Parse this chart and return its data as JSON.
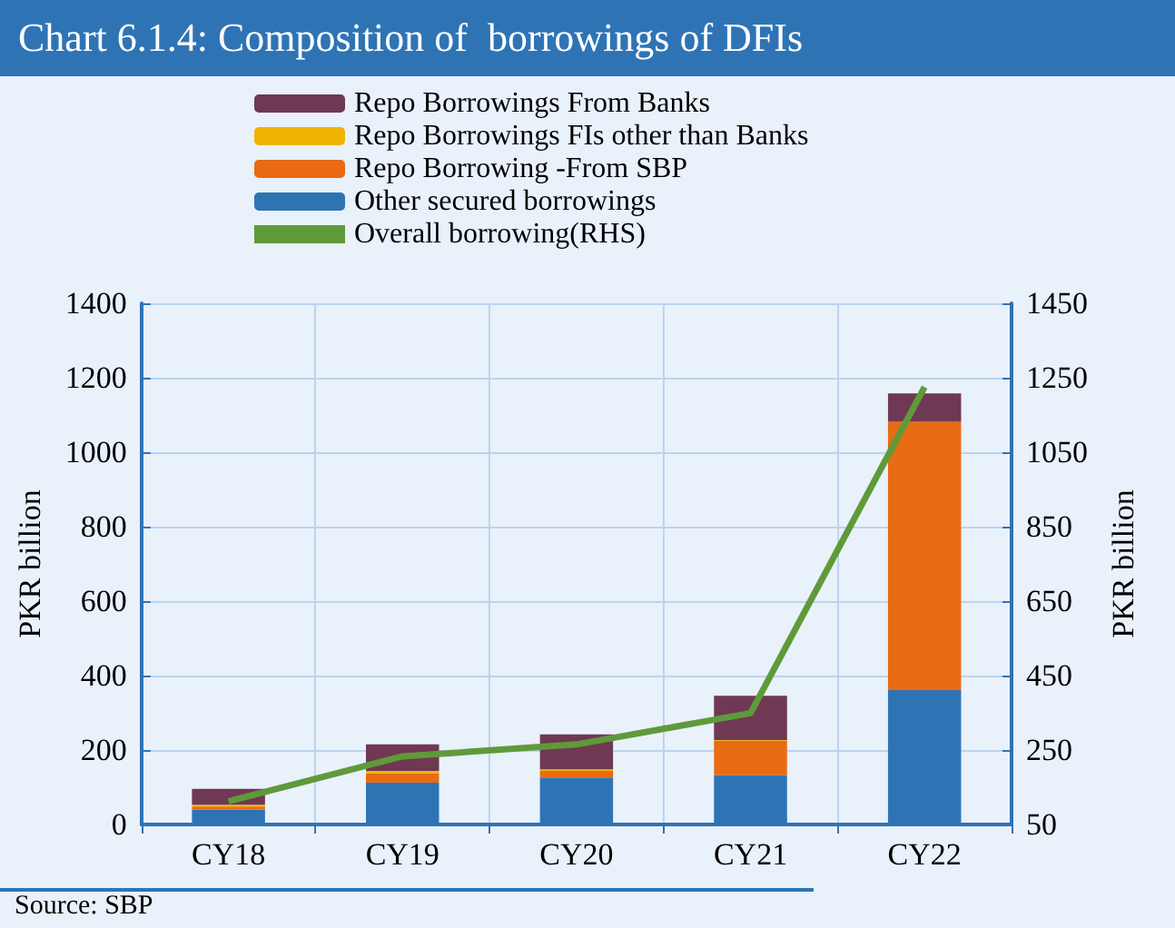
{
  "chart_data": {
    "type": "bar",
    "title": "Chart 6.1.4: Composition of  borrowings of DFIs",
    "ylabel": "PKR billion",
    "y2label": "PKR billion",
    "annotations": [
      "Source: SBP"
    ],
    "categories": [
      "CY18",
      "CY19",
      "CY20",
      "CY21",
      "CY22"
    ],
    "stacked": true,
    "series": [
      {
        "name": "Other secured borrowings",
        "color": "#2e74b5",
        "values": [
          40,
          112,
          126,
          133,
          361
        ]
      },
      {
        "name": "Repo Borrowing -From SBP",
        "color": "#e96b14",
        "values": [
          8,
          26,
          18,
          92,
          721
        ]
      },
      {
        "name": "Repo Borrowings FIs other than Banks",
        "color": "#f0b400",
        "values": [
          5,
          6,
          4,
          2,
          0
        ]
      },
      {
        "name": "Repo Borrowings From Banks",
        "color": "#6f3853",
        "values": [
          43,
          71,
          94,
          119,
          76
        ]
      },
      {
        "name": "Overall borrowing(RHS)",
        "type": "line",
        "axis": "y2",
        "color": "#5f9a3a",
        "values": [
          112,
          233,
          265,
          349,
          1225
        ]
      }
    ],
    "ylim": [
      0,
      1400
    ],
    "yticks": [
      0,
      200,
      400,
      600,
      800,
      1000,
      1200,
      1400
    ],
    "y2lim": [
      50,
      1450
    ],
    "y2ticks": [
      50,
      250,
      450,
      650,
      850,
      1050,
      1250,
      1450
    ],
    "grid": true,
    "legend": "top",
    "marker": "none"
  }
}
